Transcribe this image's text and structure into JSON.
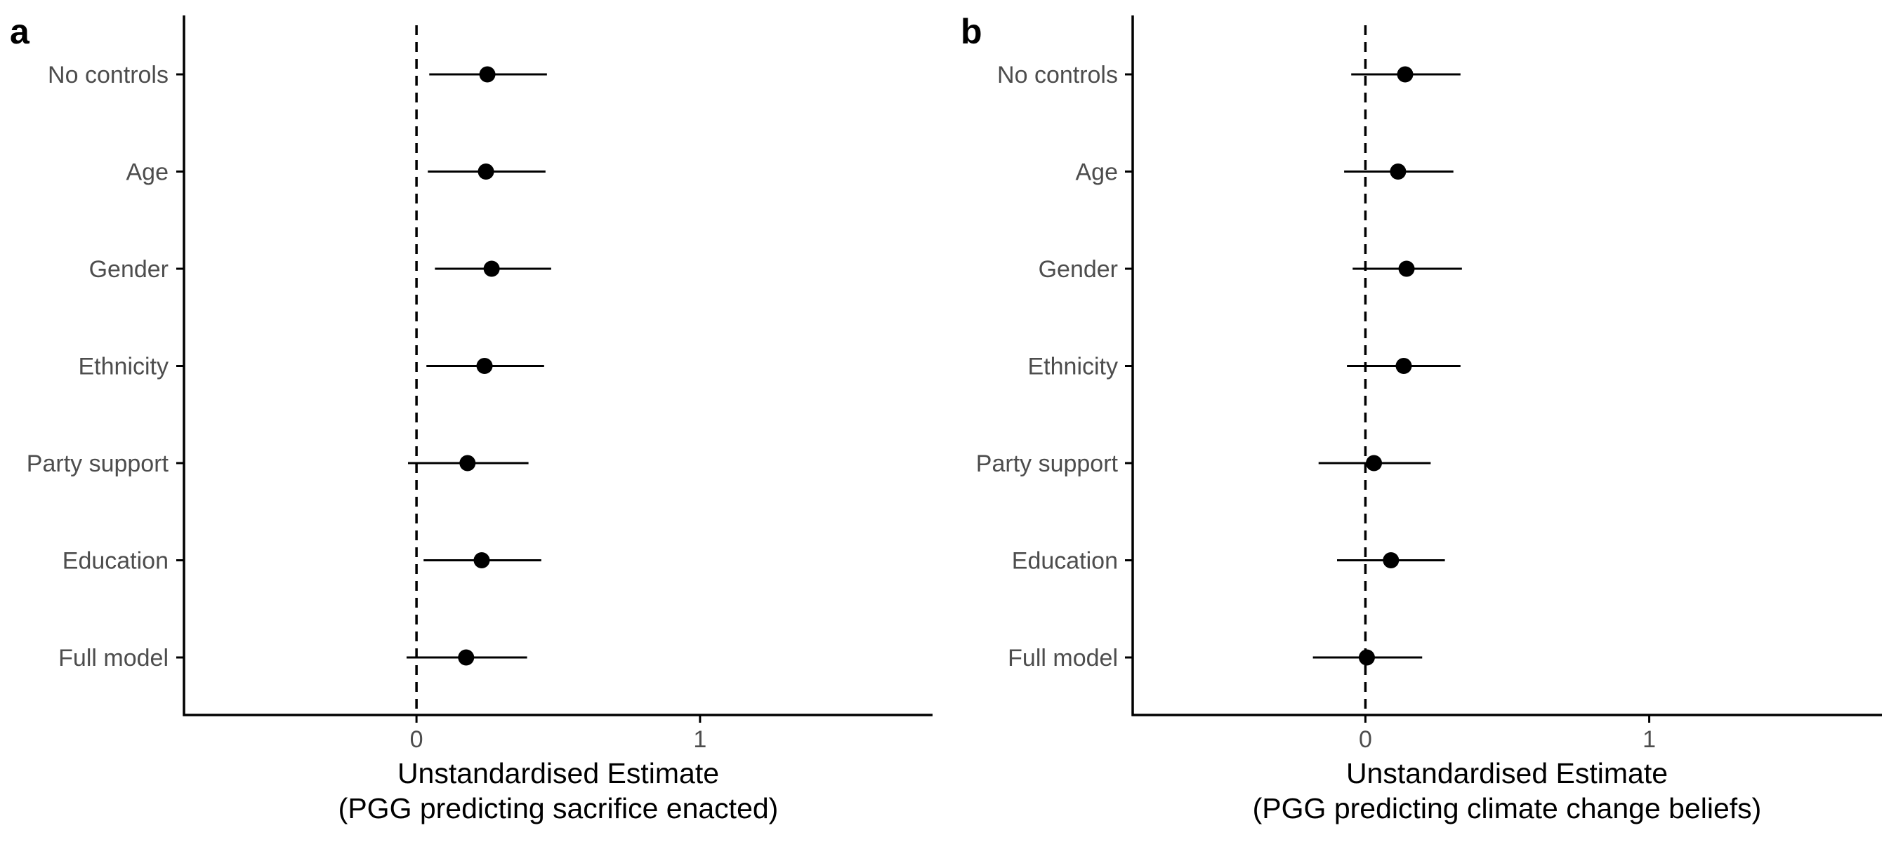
{
  "chart_data": [
    {
      "type": "scatter",
      "panel_label": "a",
      "xlabel": "Unstandardised Estimate",
      "xlabel_line2": "(PGG predicting sacrifice enacted)",
      "ylabel": "",
      "categories": [
        "No controls",
        "Age",
        "Gender",
        "Ethnicity",
        "Party support",
        "Education",
        "Full model"
      ],
      "estimates": [
        0.25,
        0.245,
        0.265,
        0.24,
        0.18,
        0.23,
        0.175
      ],
      "ci_low": [
        0.045,
        0.04,
        0.065,
        0.035,
        -0.03,
        0.025,
        -0.035
      ],
      "ci_high": [
        0.46,
        0.455,
        0.475,
        0.45,
        0.395,
        0.44,
        0.39
      ],
      "xticks": [
        0,
        1
      ],
      "xlim": [
        -0.82,
        1.82
      ],
      "reference_line": 0,
      "grid": false,
      "error_bars": "horizontal"
    },
    {
      "type": "scatter",
      "panel_label": "b",
      "xlabel": "Unstandardised Estimate",
      "xlabel_line2": "(PGG predicting climate change beliefs)",
      "ylabel": "",
      "categories": [
        "No controls",
        "Age",
        "Gender",
        "Ethnicity",
        "Party support",
        "Education",
        "Full model"
      ],
      "estimates": [
        0.14,
        0.115,
        0.145,
        0.135,
        0.03,
        0.09,
        0.005
      ],
      "ci_low": [
        -0.05,
        -0.075,
        -0.045,
        -0.065,
        -0.165,
        -0.1,
        -0.185
      ],
      "ci_high": [
        0.335,
        0.31,
        0.34,
        0.335,
        0.23,
        0.28,
        0.2
      ],
      "xticks": [
        0,
        1
      ],
      "xlim": [
        -0.82,
        1.82
      ],
      "reference_line": 0,
      "grid": false,
      "error_bars": "horizontal"
    }
  ],
  "style": {
    "point_color": "#000000",
    "line_color": "#000000",
    "axis_color": "#000000",
    "tick_label_color": "#4d4d4d"
  }
}
